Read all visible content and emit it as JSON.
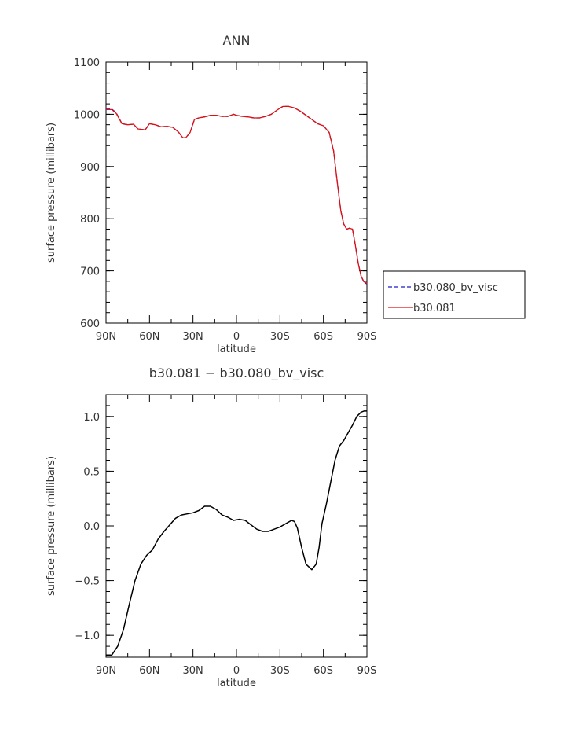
{
  "chart_data": [
    {
      "type": "line",
      "title": "ANN",
      "xlabel": "latitude",
      "ylabel": "surface pressure (millibars)",
      "x_tick_labels": [
        "90N",
        "60N",
        "30N",
        "0",
        "30S",
        "60S",
        "90S"
      ],
      "y_tick_labels": [
        "600",
        "700",
        "800",
        "900",
        "1000",
        "1100"
      ],
      "xlim": [
        90,
        -90
      ],
      "ylim": [
        600,
        1100
      ],
      "legend_position": "right",
      "series": [
        {
          "name": "b30.080_bv_visc",
          "color": "#1a1acc",
          "style": "dashed",
          "x": [
            90,
            86,
            83,
            79,
            75,
            71,
            68,
            63,
            60,
            56,
            52,
            48,
            44,
            40,
            37,
            35,
            32,
            29,
            26,
            22,
            18,
            14,
            10,
            6,
            2,
            0,
            -4,
            -8,
            -12,
            -16,
            -20,
            -24,
            -28,
            -32,
            -36,
            -40,
            -44,
            -48,
            -52,
            -56,
            -60,
            -64,
            -67,
            -70,
            -72,
            -74,
            -76,
            -78,
            -80,
            -82,
            -84,
            -86,
            -88,
            -90
          ],
          "y": [
            1010,
            1010,
            1003,
            982,
            980,
            981,
            972,
            970,
            982,
            980,
            976,
            977,
            975,
            966,
            955,
            955,
            965,
            990,
            993,
            995,
            998,
            998,
            996,
            996,
            1000,
            998,
            996,
            995,
            993,
            993,
            996,
            1000,
            1008,
            1015,
            1015,
            1012,
            1006,
            998,
            990,
            982,
            978,
            965,
            930,
            860,
            815,
            790,
            780,
            782,
            780,
            750,
            715,
            690,
            678,
            675
          ]
        },
        {
          "name": "b30.081",
          "color": "#e01010",
          "style": "solid",
          "x": [
            90,
            86,
            83,
            79,
            75,
            71,
            68,
            63,
            60,
            56,
            52,
            48,
            44,
            40,
            37,
            35,
            32,
            29,
            26,
            22,
            18,
            14,
            10,
            6,
            2,
            0,
            -4,
            -8,
            -12,
            -16,
            -20,
            -24,
            -28,
            -32,
            -36,
            -40,
            -44,
            -48,
            -52,
            -56,
            -60,
            -64,
            -67,
            -70,
            -72,
            -74,
            -76,
            -78,
            -80,
            -82,
            -84,
            -86,
            -88,
            -90
          ],
          "y": [
            1009,
            1009,
            1002,
            982,
            980,
            981,
            972,
            970,
            982,
            980,
            976,
            977,
            975,
            966,
            955,
            955,
            965,
            990,
            993,
            995,
            998,
            998,
            996,
            996,
            1000,
            998,
            996,
            995,
            993,
            993,
            996,
            1000,
            1008,
            1015,
            1015,
            1012,
            1006,
            998,
            990,
            982,
            978,
            965,
            930,
            860,
            815,
            790,
            780,
            782,
            780,
            750,
            715,
            690,
            679,
            676
          ]
        }
      ]
    },
    {
      "type": "line",
      "title": "b30.081 − b30.080_bv_visc",
      "xlabel": "latitude",
      "ylabel": "surface pressure (millibars)",
      "x_tick_labels": [
        "90N",
        "60N",
        "30N",
        "0",
        "30S",
        "60S",
        "90S"
      ],
      "y_tick_labels": [
        "−1.0",
        "−0.5",
        "0.0",
        "0.5",
        "1.0"
      ],
      "xlim": [
        90,
        -90
      ],
      "ylim": [
        -1.2,
        1.2
      ],
      "series": [
        {
          "color": "#000000",
          "style": "solid",
          "x": [
            90,
            86,
            82,
            78,
            74,
            70,
            66,
            62,
            58,
            54,
            50,
            46,
            42,
            38,
            34,
            30,
            26,
            22,
            18,
            14,
            10,
            6,
            2,
            -2,
            -6,
            -10,
            -14,
            -18,
            -22,
            -26,
            -30,
            -34,
            -38,
            -40,
            -42,
            -45,
            -48,
            -52,
            -55,
            -57,
            -59,
            -62,
            -65,
            -68,
            -71,
            -74,
            -77,
            -80,
            -83,
            -86,
            -88,
            -90
          ],
          "y": [
            -1.18,
            -1.18,
            -1.1,
            -0.95,
            -0.72,
            -0.5,
            -0.35,
            -0.27,
            -0.22,
            -0.12,
            -0.05,
            0.01,
            0.07,
            0.1,
            0.11,
            0.12,
            0.14,
            0.18,
            0.18,
            0.15,
            0.1,
            0.08,
            0.05,
            0.06,
            0.05,
            0.01,
            -0.03,
            -0.05,
            -0.05,
            -0.03,
            -0.01,
            0.02,
            0.05,
            0.04,
            -0.02,
            -0.2,
            -0.35,
            -0.4,
            -0.35,
            -0.2,
            0.02,
            0.2,
            0.4,
            0.6,
            0.73,
            0.78,
            0.85,
            0.92,
            1.0,
            1.04,
            1.05,
            1.05
          ]
        }
      ]
    }
  ]
}
